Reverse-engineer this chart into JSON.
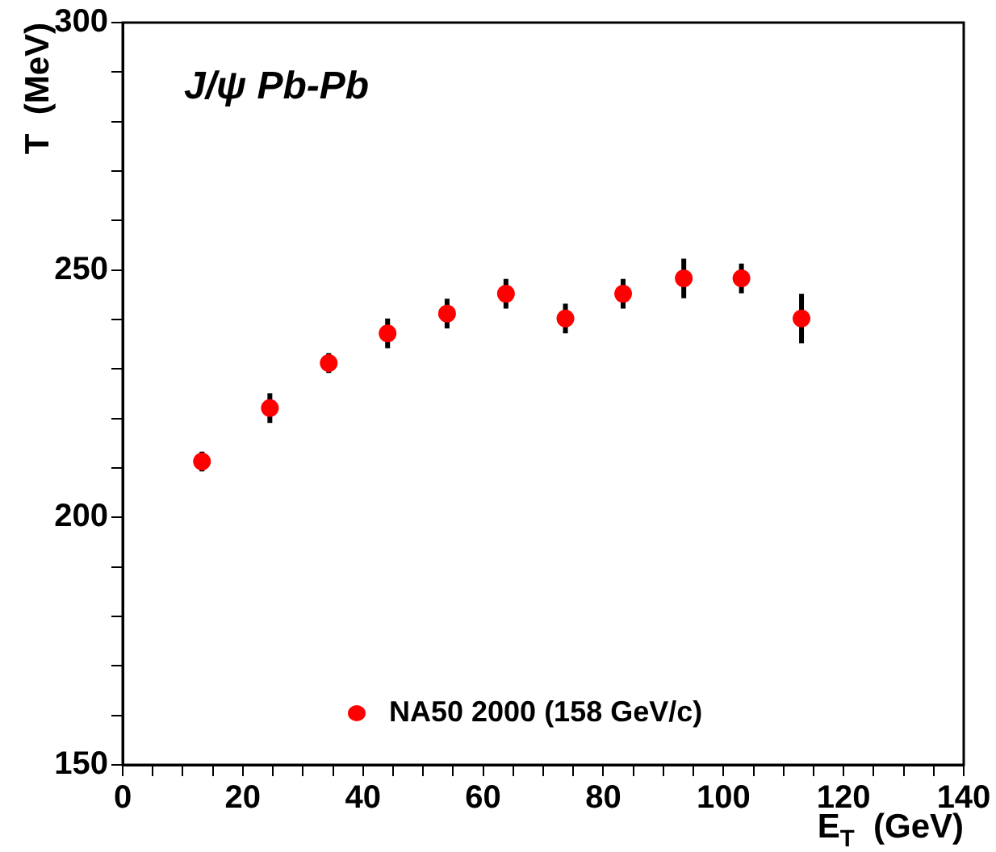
{
  "chart_data": {
    "type": "scatter",
    "title": "J/ψ Pb-Pb",
    "xlabel": "E$_{T}$  (GeV)",
    "ylabel": "T  (MeV)",
    "x": [
      13.2,
      24.5,
      34.3,
      44.1,
      54,
      63.8,
      73.7,
      83.3,
      93.4,
      103,
      113
    ],
    "series": [
      {
        "name": "NA50 2000 (158 GeV/c)",
        "color": "#ff0000",
        "values": [
          211.3,
          222.1,
          231.2,
          237.2,
          241.2,
          245.2,
          240.2,
          245.2,
          248.3,
          248.3,
          240.2
        ],
        "errors": [
          2,
          3,
          2,
          3,
          3,
          3,
          3,
          3,
          4,
          3,
          5
        ]
      }
    ],
    "xlim": [
      0,
      140
    ],
    "xticks": [
      0,
      {
        "value": 5,
        "label": null
      },
      20,
      {
        "value": 10,
        "label": null
      },
      {
        "value": 15,
        "label": null
      },
      {
        "value": 25,
        "label": null
      },
      {
        "value": 30,
        "label": null
      },
      {
        "value": 35,
        "label": null
      },
      40,
      {
        "value": 45,
        "label": null
      },
      {
        "value": 50,
        "label": null
      },
      {
        "value": 55,
        "label": null
      },
      60,
      {
        "value": 65,
        "label": null
      },
      {
        "value": 70,
        "label": null
      },
      {
        "value": 75,
        "label": null
      },
      80,
      {
        "value": 85,
        "label": null
      },
      {
        "value": 90,
        "label": null
      },
      {
        "value": 95,
        "label": null
      },
      100,
      {
        "value": 105,
        "label": null
      },
      {
        "value": 110,
        "label": null
      },
      {
        "value": 115,
        "label": null
      },
      120,
      {
        "value": 125,
        "label": null
      },
      {
        "value": 130,
        "label": null
      },
      {
        "value": 135,
        "label": null
      },
      140
    ],
    "ylim": [
      150,
      300
    ],
    "yticks": [
      150,
      {
        "value": 160,
        "label": null
      },
      {
        "value": 170,
        "label": null
      },
      {
        "value": 180,
        "label": null
      },
      {
        "value": 190,
        "label": null
      },
      200,
      {
        "value": 210,
        "label": null
      },
      {
        "value": 220,
        "label": null
      },
      {
        "value": 230,
        "label": null
      },
      {
        "value": 240,
        "label": null
      },
      250,
      {
        "value": 260,
        "label": null
      },
      {
        "value": 270,
        "label": null
      },
      {
        "value": 280,
        "label": null
      },
      {
        "value": 290,
        "label": null
      },
      300
    ],
    "grid": false,
    "legend": "bottom",
    "marker": "circle"
  }
}
